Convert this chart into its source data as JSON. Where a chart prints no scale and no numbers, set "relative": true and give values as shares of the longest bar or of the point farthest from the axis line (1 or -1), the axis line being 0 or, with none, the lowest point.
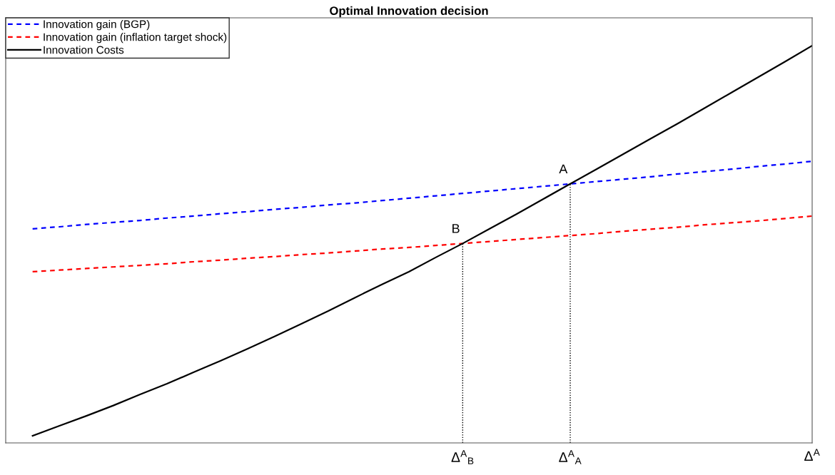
{
  "chart_data": {
    "type": "line",
    "title": "Optimal Innovation decision",
    "relative": true,
    "legend": "top left",
    "tick_labels": "x",
    "categories": [
      null,
      null,
      null,
      null,
      null,
      null,
      null,
      null,
      null,
      null,
      null,
      null,
      null,
      null,
      null,
      null,
      "Δ$^{A}$$_{B}$",
      null,
      null,
      null,
      "Δ$^{A}$$_{A}$",
      null,
      null,
      null,
      null,
      null,
      null,
      null,
      null,
      "Δ$^{A}$"
    ],
    "series": [
      {
        "name": "Innovation gain (BGP)",
        "color": "#0000ff",
        "line_style": "dashed",
        "values": [
          0.539,
          0.544,
          0.55,
          0.555,
          0.56,
          0.566,
          0.571,
          0.577,
          0.582,
          0.588,
          0.593,
          0.599,
          0.604,
          0.61,
          0.616,
          0.622,
          0.628,
          0.634,
          0.64,
          0.646,
          0.652,
          0.658,
          0.664,
          0.67,
          0.677,
          0.683,
          0.689,
          0.696,
          0.702,
          0.709
        ]
      },
      {
        "name": "Innovation gain (inflation target shock)",
        "color": "#ff0000",
        "line_style": "dashed",
        "values": [
          0.431,
          0.435,
          0.439,
          0.443,
          0.447,
          0.451,
          0.456,
          0.46,
          0.465,
          0.469,
          0.474,
          0.478,
          0.483,
          0.488,
          0.492,
          0.497,
          0.502,
          0.507,
          0.512,
          0.517,
          0.522,
          0.527,
          0.533,
          0.538,
          0.543,
          0.549,
          0.554,
          0.559,
          0.565,
          0.571
        ]
      },
      {
        "name": "Innovation Costs",
        "color": "#000000",
        "line_style": "solid",
        "values": [
          0.018,
          0.043,
          0.068,
          0.094,
          0.122,
          0.149,
          0.178,
          0.207,
          0.237,
          0.268,
          0.3,
          0.332,
          0.366,
          0.399,
          0.431,
          0.467,
          0.502,
          0.539,
          0.576,
          0.614,
          0.652,
          0.69,
          0.728,
          0.766,
          0.804,
          0.843,
          0.882,
          0.921,
          0.96,
          1.0
        ]
      }
    ],
    "ref_lines": [
      {
        "axis": "x",
        "value": "Δ$^{A}$$_{B}$",
        "color": "#000000",
        "line_style": "dotted"
      },
      {
        "axis": "x",
        "value": "Δ$^{A}$$_{A}$",
        "color": "#000000",
        "line_style": "dotted"
      }
    ],
    "annotations": [
      "B",
      "A"
    ]
  }
}
